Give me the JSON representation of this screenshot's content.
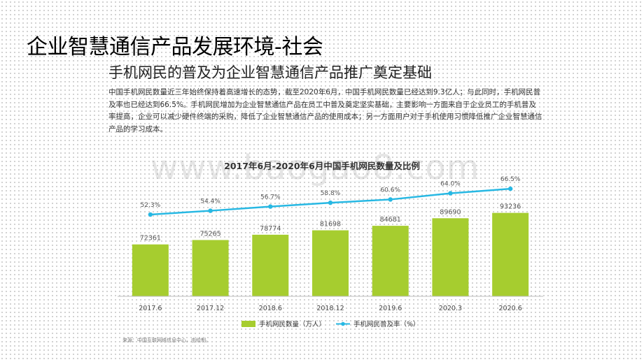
{
  "page": {
    "title": "企业智慧通信产品发展环境-社会",
    "subtitle": "手机网民的普及为企业智慧通信产品推广奠定基础",
    "body": "中国手机网民数量近三年始终保持着高速增长的态势，截至2020年6月，中国手机网民数量已经达到9.3亿人；与此同时，手机网民普及率也已经达到66.5%。手机网民增加为企业智慧通信产品在员工中普及奠定坚实基础，主要影响一方面来自于企业员工的手机普及率提高，企业可以减少硬件终端的采购，降低了企业智慧通信产品的使用成本；另一方面用户对于手机使用习惯降低推广企业智慧通信产品的学习成本。",
    "watermark": "www.baogao8.com",
    "source": "来源：中国互联网络信息中心，由绘制。"
  },
  "chart_data": {
    "type": "bar",
    "title": "2017年6月-2020年6月中国手机网民数量及比例",
    "categories": [
      "2017.6",
      "2017.12",
      "2018.6",
      "2018.12",
      "2019.6",
      "2020.3",
      "2020.6"
    ],
    "series": [
      {
        "name": "手机网民数量（万人）",
        "type": "bar",
        "values": [
          72361,
          75265,
          78774,
          81698,
          84681,
          89690,
          93236
        ],
        "labels": [
          "72361",
          "75265",
          "78774",
          "81698",
          "84681",
          "89690",
          "93236"
        ]
      },
      {
        "name": "手机网民普及率（%）",
        "type": "line",
        "values": [
          52.3,
          54.4,
          56.7,
          58.8,
          60.6,
          64.0,
          66.5
        ],
        "labels": [
          "52.3%",
          "54.4%",
          "56.7%",
          "58.8%",
          "60.6%",
          "64.0%",
          "66.5%"
        ]
      }
    ],
    "legend": "bottom",
    "grid": false,
    "colors": {
      "bar": "#a6cd2f",
      "line": "#27b8e3"
    }
  }
}
